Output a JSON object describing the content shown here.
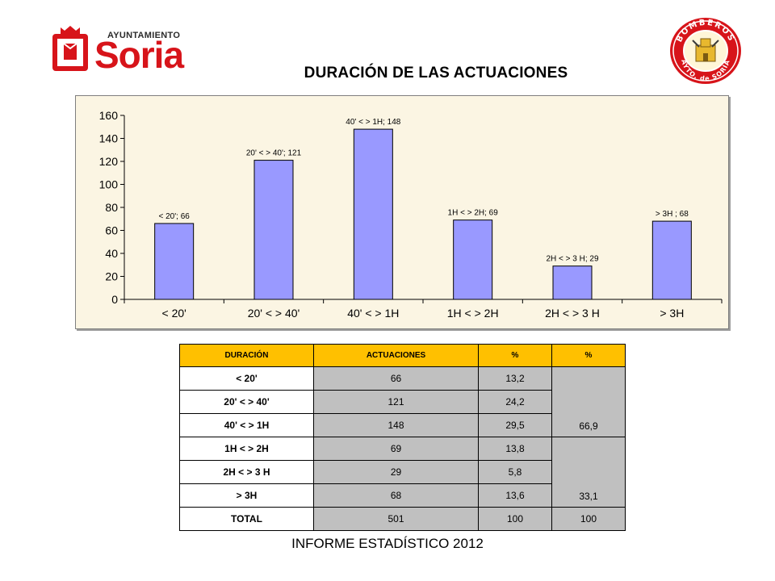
{
  "header": {
    "logo_left_sub": "AYUNTAMIENTO",
    "logo_left_name": "Soria",
    "logo_right_ring_top": "BOMBEROS",
    "logo_right_ring_bottom": "AYTO. de SORIA",
    "title": "DURACIÓN DE LAS ACTUACIONES"
  },
  "chart_data": {
    "type": "bar",
    "title": "",
    "xlabel": "",
    "ylabel": "",
    "categories": [
      "< 20'",
      "20' < > 40'",
      "40' < > 1H",
      "1H < > 2H",
      "2H < > 3 H",
      "> 3H"
    ],
    "values": [
      66,
      121,
      148,
      69,
      29,
      68
    ],
    "data_labels": [
      "< 20'; 66",
      "20' < > 40'; 121",
      "40' < > 1H; 148",
      "1H < > 2H; 69",
      "2H < > 3 H; 29",
      "> 3H ; 68"
    ],
    "yticks": [
      0,
      20,
      40,
      60,
      80,
      100,
      120,
      140,
      160
    ],
    "ylim": [
      0,
      160
    ],
    "grid": false,
    "bar_color": "#9999ff",
    "plot_background": "#fbf5e3"
  },
  "table": {
    "headers": [
      "DURACIÓN",
      "ACTUACIONES",
      "%",
      "%"
    ],
    "rows": [
      {
        "label": "< 20'",
        "actuaciones": "66",
        "pct": "13,2"
      },
      {
        "label": "20' < > 40'",
        "actuaciones": "121",
        "pct": "24,2"
      },
      {
        "label": "40' < > 1H",
        "actuaciones": "148",
        "pct": "29,5"
      },
      {
        "label": "1H < > 2H",
        "actuaciones": "69",
        "pct": "13,8"
      },
      {
        "label": "2H < > 3 H",
        "actuaciones": "29",
        "pct": "5,8"
      },
      {
        "label": "> 3H",
        "actuaciones": "68",
        "pct": "13,6"
      }
    ],
    "group1_pct": "66,9",
    "group2_pct": "33,1",
    "total": {
      "label": "TOTAL",
      "actuaciones": "501",
      "pct": "100",
      "pct2": "100"
    }
  },
  "footer": {
    "text": "INFORME ESTADÍSTICO 2012"
  },
  "colors": {
    "brand_red": "#d7141a",
    "header_yellow": "#ffc000",
    "cell_grey": "#c0c0c0"
  }
}
